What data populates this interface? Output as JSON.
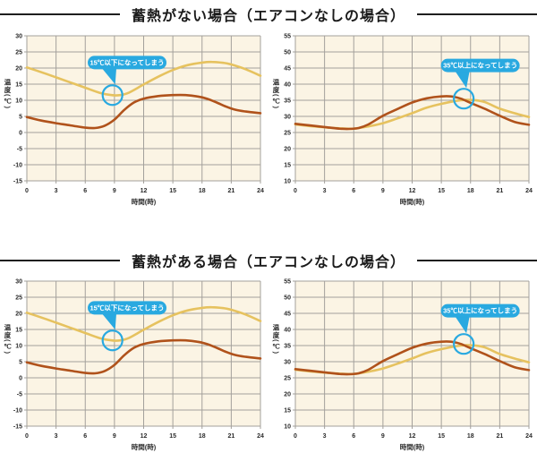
{
  "sections": [
    {
      "title": "蓄熱がない場合（エアコンなしの場合）"
    },
    {
      "title": "蓄熱がある場合（エアコンなしの場合）"
    }
  ],
  "colors": {
    "plot_bg": "#FBF4E4",
    "grid": "#A3A09B",
    "tick_text": "#2B2B2B",
    "yellow_line": "#E6C25F",
    "brown_line": "#B0521B",
    "callout_blue": "#29A9E0",
    "title_text": "#1A1A1A"
  },
  "chart_data": [
    {
      "id": "no-storage-left",
      "type": "line",
      "title": "",
      "xlabel": "時間(時)",
      "ylabel": "温度(℃)",
      "xlim": [
        0,
        24
      ],
      "ylim": [
        -15,
        30
      ],
      "xticks": [
        0,
        3,
        6,
        9,
        12,
        15,
        18,
        21,
        24
      ],
      "yticks": [
        30,
        25,
        20,
        15,
        10,
        5,
        0,
        -5,
        -10,
        -15
      ],
      "grid": true,
      "legend": "none",
      "series": [
        {
          "name": "yellow-line",
          "color": "#E6C25F",
          "x": [
            0,
            1.5,
            3,
            4.5,
            6,
            7.5,
            8.7,
            9.6,
            10.5,
            12,
            13.5,
            15,
            16.5,
            18,
            19,
            20.2,
            21,
            22.5,
            24
          ],
          "y": [
            20.2,
            18.7,
            17.1,
            15.5,
            13.9,
            12.3,
            11.6,
            11.6,
            12.4,
            14.9,
            17.3,
            19.4,
            20.9,
            21.7,
            21.9,
            21.6,
            21.1,
            19.6,
            17.6
          ]
        },
        {
          "name": "brown-line",
          "color": "#B0521B",
          "x": [
            0,
            1.5,
            3,
            4.5,
            6,
            7,
            8,
            9,
            10,
            11,
            12,
            13.5,
            15,
            16.3,
            17.5,
            18.5,
            19.5,
            20.5,
            21.5,
            22.5,
            24
          ],
          "y": [
            4.8,
            3.7,
            2.9,
            2.2,
            1.5,
            1.4,
            2.1,
            4.0,
            7.0,
            9.3,
            10.5,
            11.3,
            11.6,
            11.6,
            11.2,
            10.5,
            9.3,
            8.0,
            7.0,
            6.5,
            6.0
          ]
        }
      ],
      "annotation": {
        "text": "15℃以下になってしまう",
        "color": "#29A9E0",
        "bubble": {
          "x": 10.3,
          "y": 21.7
        },
        "circle": {
          "x": 8.8,
          "y": 11.6
        }
      }
    },
    {
      "id": "no-storage-right",
      "type": "line",
      "title": "",
      "xlabel": "時間(時)",
      "ylabel": "温度(℃)",
      "xlim": [
        0,
        24
      ],
      "ylim": [
        10,
        55
      ],
      "xticks": [
        0,
        3,
        6,
        9,
        12,
        15,
        18,
        21,
        24
      ],
      "yticks": [
        55,
        50,
        45,
        40,
        35,
        30,
        25,
        20,
        15,
        10
      ],
      "grid": true,
      "legend": "none",
      "series": [
        {
          "name": "yellow-line",
          "color": "#E6C25F",
          "x": [
            0,
            1.5,
            3,
            4.5,
            6,
            7.5,
            9,
            10.5,
            12,
            13.5,
            15,
            16.5,
            17.5,
            18.5,
            19.5,
            21,
            22.5,
            24
          ],
          "y": [
            27.5,
            27.0,
            26.6,
            26.3,
            26.2,
            26.9,
            27.9,
            29.4,
            31.0,
            32.7,
            33.9,
            34.8,
            35.1,
            35.0,
            34.4,
            32.4,
            31.0,
            29.8
          ]
        },
        {
          "name": "brown-line",
          "color": "#B0521B",
          "x": [
            0,
            1.5,
            3,
            4.5,
            5.5,
            6.5,
            7.5,
            9,
            10.5,
            12,
            13.5,
            15,
            16,
            17,
            18,
            19.5,
            21,
            22.5,
            24
          ],
          "y": [
            27.7,
            27.2,
            26.7,
            26.2,
            26.1,
            26.4,
            27.5,
            30.2,
            32.3,
            34.3,
            35.6,
            36.2,
            36.2,
            35.5,
            34.2,
            32.3,
            30.2,
            28.3,
            27.4
          ]
        }
      ],
      "annotation": {
        "text": "35℃以上になってしまう",
        "color": "#29A9E0",
        "bubble": {
          "x": 19.0,
          "y": 45.8
        },
        "circle": {
          "x": 17.3,
          "y": 35.5
        }
      }
    },
    {
      "id": "with-storage-left",
      "type": "line",
      "title": "",
      "xlabel": "時間(時)",
      "ylabel": "温度(℃)",
      "xlim": [
        0,
        24
      ],
      "ylim": [
        -15,
        30
      ],
      "xticks": [
        0,
        3,
        6,
        9,
        12,
        15,
        18,
        21,
        24
      ],
      "yticks": [
        30,
        25,
        20,
        15,
        10,
        5,
        0,
        -5,
        -10,
        -15
      ],
      "grid": true,
      "legend": "none",
      "series": [
        {
          "name": "yellow-line",
          "color": "#E6C25F",
          "x": [
            0,
            1.5,
            3,
            4.5,
            6,
            7.5,
            8.7,
            9.6,
            10.5,
            12,
            13.5,
            15,
            16.5,
            18,
            19,
            20.2,
            21,
            22.5,
            24
          ],
          "y": [
            20.2,
            18.7,
            17.1,
            15.5,
            13.9,
            12.3,
            11.6,
            11.6,
            12.4,
            14.9,
            17.3,
            19.4,
            20.9,
            21.7,
            21.9,
            21.6,
            21.1,
            19.6,
            17.6
          ]
        },
        {
          "name": "brown-line",
          "color": "#B0521B",
          "x": [
            0,
            1.5,
            3,
            4.5,
            6,
            7,
            8,
            9,
            10,
            11,
            12,
            13.5,
            15,
            16.3,
            17.5,
            18.5,
            19.5,
            20.5,
            21.5,
            22.5,
            24
          ],
          "y": [
            4.8,
            3.7,
            2.9,
            2.2,
            1.5,
            1.4,
            2.1,
            4.0,
            7.0,
            9.3,
            10.5,
            11.3,
            11.6,
            11.6,
            11.2,
            10.5,
            9.3,
            8.0,
            7.0,
            6.5,
            6.0
          ]
        }
      ],
      "annotation": {
        "text": "15℃以下になってしまう",
        "color": "#29A9E0",
        "bubble": {
          "x": 10.3,
          "y": 21.7
        },
        "circle": {
          "x": 8.8,
          "y": 11.6
        }
      }
    },
    {
      "id": "with-storage-right",
      "type": "line",
      "title": "",
      "xlabel": "時間(時)",
      "ylabel": "温度(℃)",
      "xlim": [
        0,
        24
      ],
      "ylim": [
        10,
        55
      ],
      "xticks": [
        0,
        3,
        6,
        9,
        12,
        15,
        18,
        21,
        24
      ],
      "yticks": [
        55,
        50,
        45,
        40,
        35,
        30,
        25,
        20,
        15,
        10
      ],
      "grid": true,
      "legend": "none",
      "series": [
        {
          "name": "yellow-line",
          "color": "#E6C25F",
          "x": [
            0,
            1.5,
            3,
            4.5,
            6,
            7.5,
            9,
            10.5,
            12,
            13.5,
            15,
            16.5,
            17.5,
            18.5,
            19.5,
            21,
            22.5,
            24
          ],
          "y": [
            27.5,
            27.0,
            26.6,
            26.3,
            26.2,
            26.9,
            27.9,
            29.4,
            31.0,
            32.7,
            33.9,
            34.8,
            35.1,
            35.0,
            34.4,
            32.4,
            31.0,
            29.8
          ]
        },
        {
          "name": "brown-line",
          "color": "#B0521B",
          "x": [
            0,
            1.5,
            3,
            4.5,
            5.5,
            6.5,
            7.5,
            9,
            10.5,
            12,
            13.5,
            15,
            16,
            17,
            18,
            19.5,
            21,
            22.5,
            24
          ],
          "y": [
            27.7,
            27.2,
            26.7,
            26.2,
            26.1,
            26.4,
            27.5,
            30.2,
            32.3,
            34.3,
            35.6,
            36.2,
            36.2,
            35.5,
            34.2,
            32.3,
            30.2,
            28.3,
            27.4
          ]
        }
      ],
      "annotation": {
        "text": "35℃以上になってしまう",
        "color": "#29A9E0",
        "bubble": {
          "x": 19.0,
          "y": 45.8
        },
        "circle": {
          "x": 17.3,
          "y": 35.5
        }
      }
    }
  ]
}
